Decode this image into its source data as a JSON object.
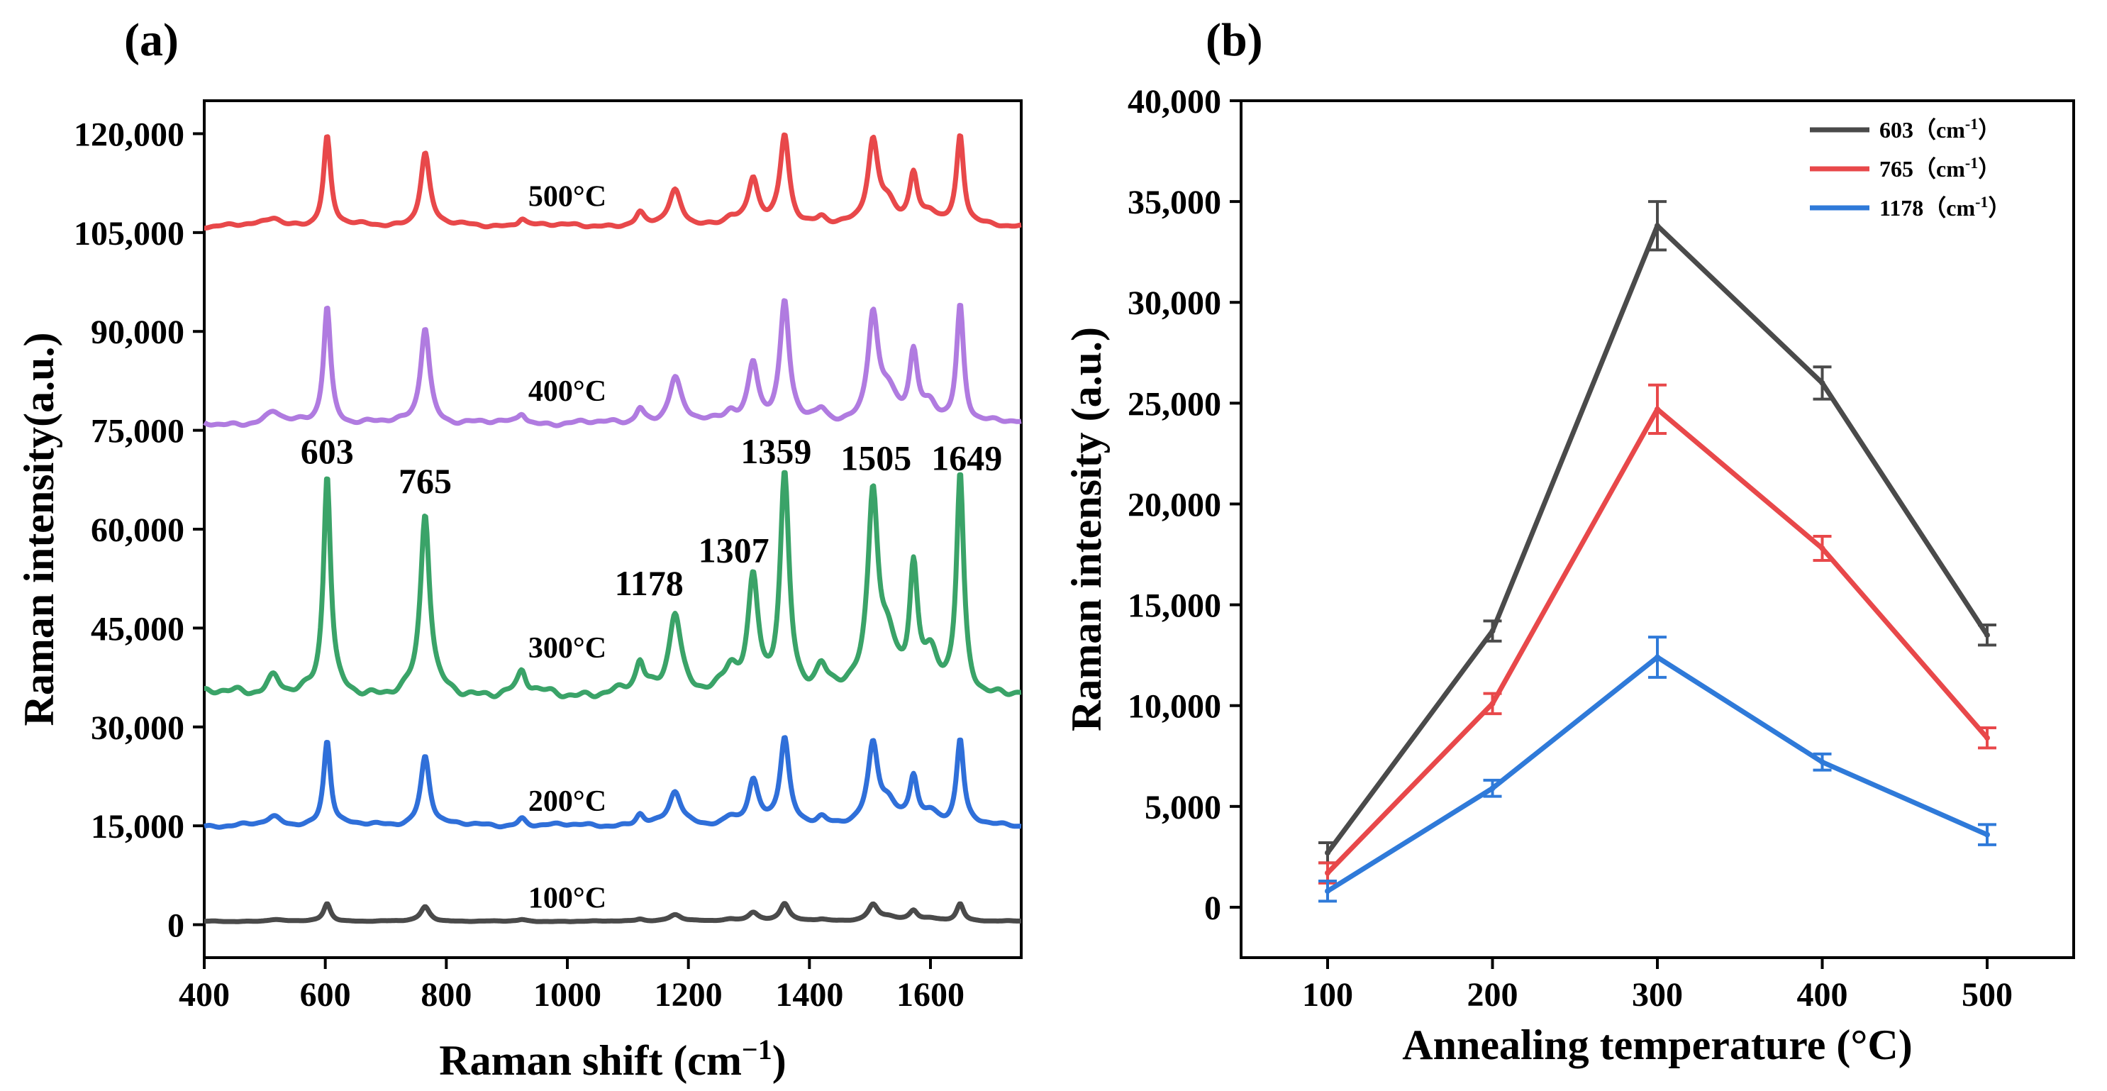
{
  "chart_data": [
    {
      "panel_label": "(a)",
      "type": "line",
      "xlabel_main": "Raman shift (cm",
      "xlabel_sup": "−1",
      "xlabel_end": ")",
      "ylabel": "Raman intensity(a.u.)",
      "xlim": [
        400,
        1750
      ],
      "ylim": [
        -5000,
        125000
      ],
      "xticks": [
        400,
        600,
        800,
        1000,
        1200,
        1400,
        1600
      ],
      "yticks": [
        0,
        15000,
        30000,
        45000,
        60000,
        75000,
        90000,
        105000,
        120000
      ],
      "ytick_labels": [
        "0",
        "15,000",
        "30,000",
        "45,000",
        "60,000",
        "75,000",
        "90,000",
        "105,000",
        "120,000"
      ],
      "peaks": [
        {
          "pos": 603,
          "h": 1.0,
          "w": 7
        },
        {
          "pos": 765,
          "h": 0.82,
          "w": 9
        },
        {
          "pos": 1178,
          "h": 0.38,
          "w": 12
        },
        {
          "pos": 1307,
          "h": 0.5,
          "w": 10
        },
        {
          "pos": 1359,
          "h": 1.0,
          "w": 9
        },
        {
          "pos": 1505,
          "h": 0.9,
          "w": 10
        },
        {
          "pos": 1649,
          "h": 0.99,
          "w": 7
        },
        {
          "pos": 1572,
          "h": 0.55,
          "w": 8
        },
        {
          "pos": 1120,
          "h": 0.13,
          "w": 8
        },
        {
          "pos": 925,
          "h": 0.09,
          "w": 8
        },
        {
          "pos": 515,
          "h": 0.09,
          "w": 14
        },
        {
          "pos": 1420,
          "h": 0.09,
          "w": 10
        },
        {
          "pos": 1270,
          "h": 0.09,
          "w": 12
        },
        {
          "pos": 1530,
          "h": 0.22,
          "w": 16
        },
        {
          "pos": 1600,
          "h": 0.14,
          "w": 14
        }
      ],
      "series": [
        {
          "name": "100°C",
          "label": "100°C",
          "color": "#4a4a4a",
          "baseline": 500,
          "peak_scale": 2700,
          "label_pos": [
            1000,
            2600
          ]
        },
        {
          "name": "200°C",
          "label": "200°C",
          "color": "#2f6fd9",
          "baseline": 15000,
          "peak_scale": 13000,
          "label_pos": [
            1000,
            17300
          ]
        },
        {
          "name": "300°C",
          "label": "300°C",
          "color": "#3aa368",
          "baseline": 35000,
          "peak_scale": 33000,
          "label_pos": [
            1000,
            40500
          ]
        },
        {
          "name": "400°C",
          "label": "400°C",
          "color": "#b07be0",
          "baseline": 76000,
          "peak_scale": 18000,
          "label_pos": [
            1000,
            79500
          ]
        },
        {
          "name": "500°C",
          "label": "500°C",
          "color": "#e8484a",
          "baseline": 106000,
          "peak_scale": 13500,
          "label_pos": [
            1000,
            109000
          ]
        }
      ],
      "peak_labels": [
        {
          "text": "603",
          "x": 603,
          "y": 70000
        },
        {
          "text": "765",
          "x": 765,
          "y": 65500
        },
        {
          "text": "1178",
          "x": 1135,
          "y": 50000
        },
        {
          "text": "1307",
          "x": 1275,
          "y": 55000
        },
        {
          "text": "1359",
          "x": 1345,
          "y": 70000
        },
        {
          "text": "1505",
          "x": 1510,
          "y": 69000
        },
        {
          "text": "1649",
          "x": 1660,
          "y": 69000
        }
      ]
    },
    {
      "panel_label": "(b)",
      "type": "line",
      "xlabel": "Annealing temperature (°C)",
      "ylabel": "Raman intensity (a.u.)",
      "categories": [
        "100",
        "200",
        "300",
        "400",
        "500"
      ],
      "ylim": [
        -2500,
        40000
      ],
      "yticks": [
        0,
        5000,
        10000,
        15000,
        20000,
        25000,
        30000,
        35000,
        40000
      ],
      "ytick_labels": [
        "0",
        "5,000",
        "10,000",
        "15,000",
        "20,000",
        "25,000",
        "30,000",
        "35,000",
        "40,000"
      ],
      "legend_position": "top-right",
      "series": [
        {
          "name": "603 (cm-1)",
          "legend_main": "603（cm",
          "legend_sup": "-1",
          "legend_end": "）",
          "color": "#4a4a4a",
          "values": [
            2700,
            13700,
            33800,
            26000,
            13500
          ],
          "errors": [
            500,
            500,
            1200,
            800,
            500
          ]
        },
        {
          "name": "765 (cm-1)",
          "legend_main": "765（cm",
          "legend_sup": "-1",
          "legend_end": "）",
          "color": "#e8484a",
          "values": [
            1700,
            10100,
            24700,
            17800,
            8400
          ],
          "errors": [
            500,
            500,
            1200,
            600,
            500
          ]
        },
        {
          "name": "1178 (cm-1)",
          "legend_main": "1178（cm",
          "legend_sup": "-1",
          "legend_end": "）",
          "color": "#2f7ad9",
          "values": [
            800,
            5900,
            12400,
            7200,
            3600
          ],
          "errors": [
            500,
            400,
            1000,
            400,
            500
          ]
        }
      ]
    }
  ]
}
